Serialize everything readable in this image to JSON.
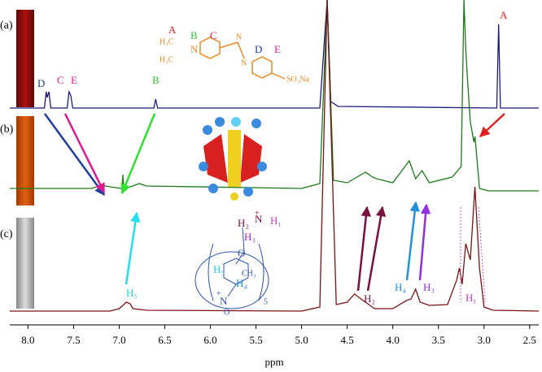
{
  "chart_data": {
    "type": "line",
    "x_label": "ppm",
    "xlim": [
      8.2,
      2.4
    ],
    "xticks": [
      {
        "value": 8,
        "label": "8.0"
      },
      7.5,
      {
        "value": 7,
        "label": "7.0"
      },
      6.5,
      {
        "value": 6,
        "label": "6.0"
      },
      5.5,
      {
        "value": 5,
        "label": "5.0"
      },
      4.5,
      {
        "value": 4,
        "label": "4.0"
      },
      3.5,
      {
        "value": 3,
        "label": "3.0"
      },
      2.5
    ],
    "ylim": [
      0,
      100
    ],
    "panel_labels": [
      "(a)",
      "(b)",
      "(c)"
    ],
    "annotations": [
      "A",
      "D",
      "C",
      "E",
      "B",
      "H₂",
      "H₄",
      "H₃",
      "H₁",
      "H₅",
      "A",
      "H₃C",
      "H₃C",
      "N",
      "B",
      "C",
      "N",
      "N",
      "D",
      "E",
      "SO₃Na",
      "H₂",
      "N",
      "H₁",
      "H₃",
      "O",
      "H₅",
      "H₄",
      "CH₃",
      "5",
      "N",
      "+",
      "+",
      "O"
    ],
    "series": [
      {
        "name": "(a)",
        "color": "#1b1b7e",
        "x": [
          8.2,
          7.82,
          7.8,
          7.79,
          7.77,
          7.75,
          7.57,
          7.55,
          7.53,
          7.51,
          6.62,
          6.6,
          6.58,
          4.8,
          4.72,
          4.68,
          4.6,
          2.86,
          2.84,
          2.82,
          2.4
        ],
        "values": [
          66.75,
          66.75,
          71.75,
          70,
          71.75,
          66.75,
          66.75,
          71.75,
          70.5,
          66.75,
          66.75,
          69.5,
          66.75,
          66.75,
          100,
          68.75,
          67.25,
          66.75,
          92.5,
          66.75,
          66.75
        ]
      },
      {
        "name": "(b)",
        "color": "#1c7a1c",
        "x": [
          8.2,
          7.3,
          7.2,
          7.1,
          6.97,
          6.96,
          6.95,
          6.85,
          6.78,
          6.7,
          5.0,
          4.8,
          4.72,
          4.65,
          4.5,
          4.3,
          4.22,
          4.18,
          4.0,
          3.82,
          3.75,
          3.68,
          3.6,
          3.35,
          3.25,
          3.22,
          3.2,
          3.18,
          3.15,
          3.11,
          3.1,
          3.09,
          3.05,
          2.95,
          2.4
        ],
        "values": [
          42,
          42,
          43,
          42.5,
          42,
          46.25,
          42,
          42.75,
          43.5,
          42.75,
          42,
          43.5,
          100,
          44.5,
          43.75,
          47,
          45.5,
          45,
          43.75,
          50.5,
          45,
          47.5,
          43.75,
          45.5,
          48.75,
          100,
          85,
          75,
          62.5,
          56.25,
          58,
          55,
          42,
          41.25,
          41.25
        ]
      },
      {
        "name": "(c)",
        "color": "#7a1212",
        "x": [
          8.2,
          7.1,
          7.0,
          6.92,
          6.88,
          6.85,
          6.7,
          5.0,
          4.8,
          4.72,
          4.62,
          4.5,
          4.42,
          4.35,
          4.2,
          4.0,
          3.85,
          3.8,
          3.75,
          3.7,
          3.6,
          3.4,
          3.3,
          3.27,
          3.24,
          3.2,
          3.15,
          3.1,
          3.05,
          3.0,
          2.9,
          2.4
        ],
        "values": [
          4.25,
          4.25,
          5,
          7,
          6.5,
          5,
          4.5,
          4.25,
          5.5,
          100,
          6.25,
          7,
          9.5,
          8,
          5,
          5,
          7.5,
          8,
          11,
          7,
          6,
          6.25,
          13.75,
          17.5,
          12.5,
          25,
          20,
          42.5,
          17.5,
          5.5,
          4.5,
          4.25
        ]
      }
    ]
  }
}
